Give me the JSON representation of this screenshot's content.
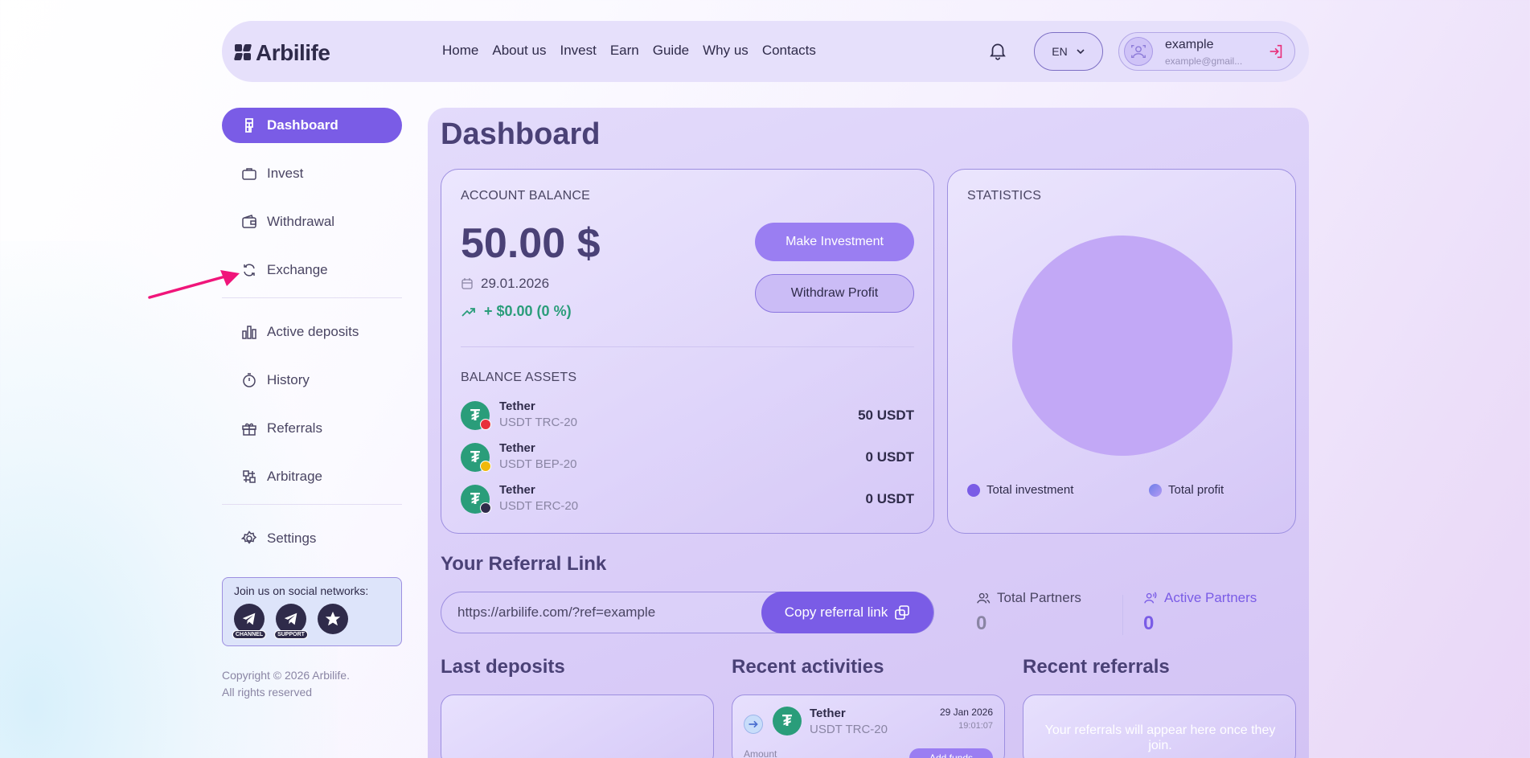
{
  "header": {
    "logo_text": "Arbilife",
    "nav": [
      "Home",
      "About us",
      "Invest",
      "Earn",
      "Guide",
      "Why us",
      "Contacts"
    ],
    "language": "EN",
    "user_name": "example",
    "user_email": "example@gmail..."
  },
  "sidebar": {
    "items": [
      {
        "label": "Dashboard",
        "icon": "dashboard-icon"
      },
      {
        "label": "Invest",
        "icon": "briefcase-icon"
      },
      {
        "label": "Withdrawal",
        "icon": "wallet-icon"
      },
      {
        "label": "Exchange",
        "icon": "refresh-icon"
      },
      {
        "label": "Active deposits",
        "icon": "bar-chart-icon"
      },
      {
        "label": "History",
        "icon": "stopwatch-icon"
      },
      {
        "label": "Referrals",
        "icon": "gift-icon"
      },
      {
        "label": "Arbitrage",
        "icon": "arbitrage-icon"
      },
      {
        "label": "Settings",
        "icon": "gear-icon"
      }
    ],
    "social_title": "Join us on social networks:",
    "social_tags": [
      "CHANNEL",
      "SUPPORT"
    ],
    "copyright_line1": "Copyright © 2026 Arbilife.",
    "copyright_line2": "All rights reserved"
  },
  "main": {
    "title": "Dashboard",
    "balance": {
      "label": "ACCOUNT BALANCE",
      "amount": "50.00 $",
      "date": "29.01.2026",
      "change": "+ $0.00 (0 %)",
      "make_investment": "Make Investment",
      "withdraw_profit": "Withdraw Profit",
      "assets_label": "BALANCE ASSETS",
      "assets": [
        {
          "name": "Tether",
          "network": "USDT TRC-20",
          "value": "50 USDT",
          "badge_color": "#e8303a"
        },
        {
          "name": "Tether",
          "network": "USDT BEP-20",
          "value": "0 USDT",
          "badge_color": "#f0b90b"
        },
        {
          "name": "Tether",
          "network": "USDT ERC-20",
          "value": "0 USDT",
          "badge_color": "#2f2b4a"
        }
      ]
    },
    "statistics": {
      "label": "STATISTICS",
      "legend": [
        {
          "label": "Total investment",
          "color": "#7a5ce6"
        },
        {
          "label": "Total profit",
          "color": "#8e86e8"
        }
      ]
    },
    "referral": {
      "title": "Your Referral Link",
      "url": "https://arbilife.com/?ref=example",
      "copy_button": "Copy referral link",
      "total_partners_label": "Total Partners",
      "total_partners_value": "0",
      "active_partners_label": "Active Partners",
      "active_partners_value": "0"
    },
    "last_deposits_title": "Last deposits",
    "recent_activities": {
      "title": "Recent activities",
      "item": {
        "name": "Tether",
        "network": "USDT TRC-20",
        "date": "29 Jan 2026",
        "time": "19:01:07",
        "amount_label": "Amount",
        "action": "Add funds"
      }
    },
    "recent_referrals": {
      "title": "Recent referrals",
      "empty": "Your referrals will appear here once they join."
    }
  },
  "colors": {
    "accent": "#7a5ce6",
    "accent_light": "#9a7ef2",
    "positive": "#2a9d7a",
    "tether": "#2a9d7a",
    "annotation_arrow": "#f0157a"
  }
}
